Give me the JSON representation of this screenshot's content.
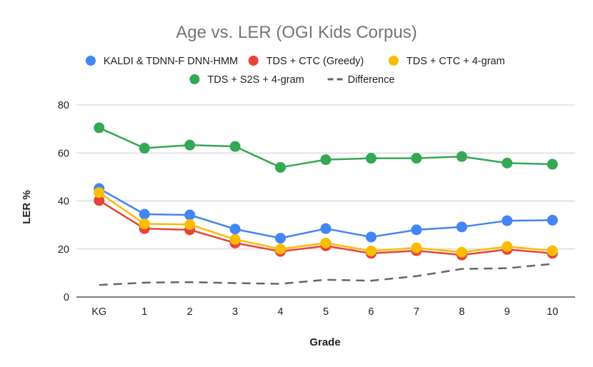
{
  "chart_data": {
    "type": "line",
    "title": "Age vs. LER (OGI Kids Corpus)",
    "xlabel": "Grade",
    "ylabel": "LER %",
    "categories": [
      "KG",
      "1",
      "2",
      "3",
      "4",
      "5",
      "6",
      "7",
      "8",
      "9",
      "10"
    ],
    "ylim": [
      0,
      80
    ],
    "yticks": [
      0,
      20,
      40,
      60,
      80
    ],
    "grid": true,
    "legend_position": "top",
    "series": [
      {
        "name": "KALDI & TDNN-F DNN-HMM",
        "color": "#4285f4",
        "style": "line-markers",
        "values": [
          45.2,
          34.5,
          34.2,
          28.3,
          24.5,
          28.5,
          25.0,
          28.0,
          29.2,
          31.8,
          32.0
        ]
      },
      {
        "name": "TDS + CTC (Greedy)",
        "color": "#ea4335",
        "style": "line-markers",
        "values": [
          40.2,
          28.5,
          28.0,
          22.5,
          19.0,
          21.3,
          18.2,
          19.3,
          17.5,
          19.8,
          18.2
        ]
      },
      {
        "name": "TDS + CTC + 4-gram",
        "color": "#fbbc04",
        "style": "line-markers",
        "values": [
          43.5,
          30.5,
          30.2,
          24.0,
          20.0,
          22.5,
          19.2,
          20.5,
          18.7,
          21.0,
          19.3
        ]
      },
      {
        "name": "TDS + S2S + 4-gram",
        "color": "#34a853",
        "style": "line-markers",
        "values": [
          70.5,
          62.0,
          63.3,
          62.7,
          54.0,
          57.2,
          57.8,
          57.8,
          58.5,
          55.8,
          55.3
        ]
      },
      {
        "name": "Difference",
        "color": "#666666",
        "style": "dashed",
        "values": [
          5.0,
          6.0,
          6.2,
          5.8,
          5.5,
          7.2,
          6.8,
          8.7,
          11.7,
          12.0,
          13.8
        ]
      }
    ]
  }
}
